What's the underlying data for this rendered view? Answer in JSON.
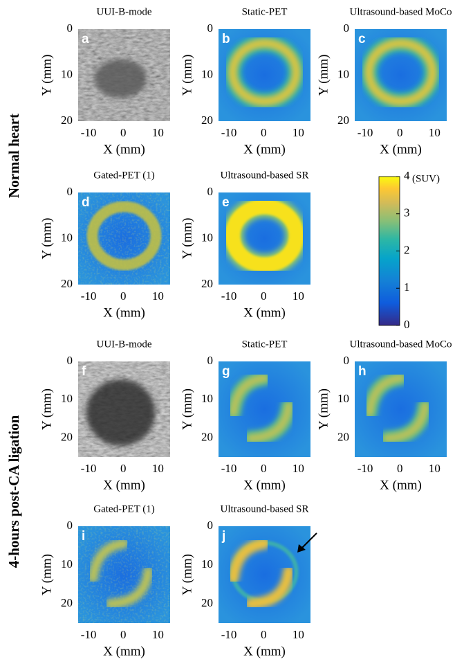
{
  "row_labels": [
    "Normal heart",
    "4-hours post-CA ligation"
  ],
  "panels": [
    {
      "letter": "a",
      "title": "UUI-B-mode"
    },
    {
      "letter": "b",
      "title": "Static-PET"
    },
    {
      "letter": "c",
      "title": "Ultrasound-based MoCo"
    },
    {
      "letter": "d",
      "title": "Gated-PET (1)"
    },
    {
      "letter": "e",
      "title": "Ultrasound-based SR"
    },
    {
      "letter": "f",
      "title": "UUI-B-mode"
    },
    {
      "letter": "g",
      "title": "Static-PET"
    },
    {
      "letter": "h",
      "title": "Ultrasound-based MoCo"
    },
    {
      "letter": "i",
      "title": "Gated-PET (1)"
    },
    {
      "letter": "j",
      "title": "Ultrasound-based SR"
    }
  ],
  "axes": {
    "x_label": "X (mm)",
    "y_label": "Y (mm)",
    "x_ticks": [
      "-10",
      "0",
      "10"
    ],
    "y_ticks": [
      "0",
      "10",
      "20"
    ]
  },
  "colorbar": {
    "unit": "(SUV)",
    "ticks": [
      "0",
      "1",
      "2",
      "3",
      "4"
    ]
  }
}
